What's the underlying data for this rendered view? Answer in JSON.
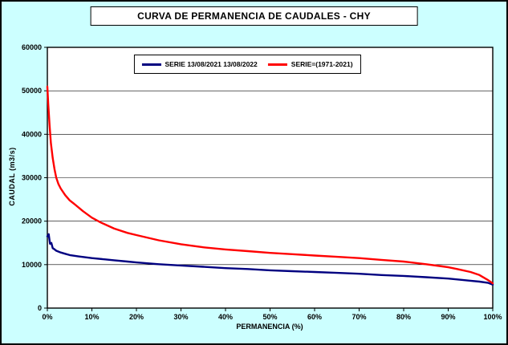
{
  "title": "CURVA DE PERMANENCIA DE CAUDALES - CHY",
  "colors": {
    "background": "#CCFFFF",
    "plot_background": "#FFFFFF",
    "border": "#000000",
    "series_blue": "#000080",
    "series_red": "#FF0000"
  },
  "chart_data": {
    "type": "line",
    "title": "CURVA DE PERMANENCIA DE CAUDALES - CHY",
    "xlabel": "PERMANENCIA (%)",
    "ylabel": "CAUDAL (m3/s)",
    "xlim": [
      0,
      100
    ],
    "ylim": [
      0,
      60000
    ],
    "x_ticks": [
      "0%",
      "10%",
      "20%",
      "30%",
      "40%",
      "50%",
      "60%",
      "70%",
      "80%",
      "90%",
      "100%"
    ],
    "y_ticks": [
      0,
      10000,
      20000,
      30000,
      40000,
      50000,
      60000
    ],
    "grid": "horizontal",
    "legend_position": "top-inside",
    "series": [
      {
        "name": "SERIE 13/08/2021 13/08/2022",
        "color": "#000080",
        "x": [
          0,
          0.3,
          0.6,
          0.9,
          1.2,
          1.5,
          2,
          2.5,
          3,
          4,
          5,
          7,
          10,
          13,
          15,
          18,
          20,
          25,
          30,
          35,
          40,
          45,
          50,
          55,
          60,
          65,
          70,
          75,
          80,
          85,
          90,
          93,
          95,
          97,
          99,
          100
        ],
        "values": [
          16500,
          17000,
          14800,
          15000,
          13800,
          13600,
          13200,
          13000,
          12800,
          12500,
          12200,
          11900,
          11500,
          11200,
          11000,
          10700,
          10500,
          10100,
          9800,
          9500,
          9200,
          9000,
          8700,
          8500,
          8300,
          8100,
          7900,
          7600,
          7400,
          7100,
          6800,
          6500,
          6300,
          6100,
          5800,
          5400
        ]
      },
      {
        "name": "SERIE=(1971-2021)",
        "color": "#FF0000",
        "x": [
          0,
          0.2,
          0.5,
          0.8,
          1.2,
          1.6,
          2,
          2.5,
          3,
          4,
          5,
          6,
          8,
          10,
          12,
          15,
          18,
          20,
          25,
          30,
          35,
          40,
          45,
          50,
          55,
          60,
          65,
          70,
          75,
          80,
          85,
          88,
          90,
          92,
          95,
          97,
          99,
          100
        ],
        "values": [
          51000,
          47000,
          42000,
          38000,
          34500,
          32000,
          30000,
          28500,
          27500,
          26000,
          24800,
          24000,
          22300,
          20800,
          19700,
          18300,
          17300,
          16800,
          15600,
          14700,
          14000,
          13500,
          13100,
          12700,
          12400,
          12100,
          11800,
          11500,
          11100,
          10700,
          10100,
          9700,
          9400,
          9000,
          8300,
          7600,
          6400,
          5700
        ]
      }
    ]
  }
}
